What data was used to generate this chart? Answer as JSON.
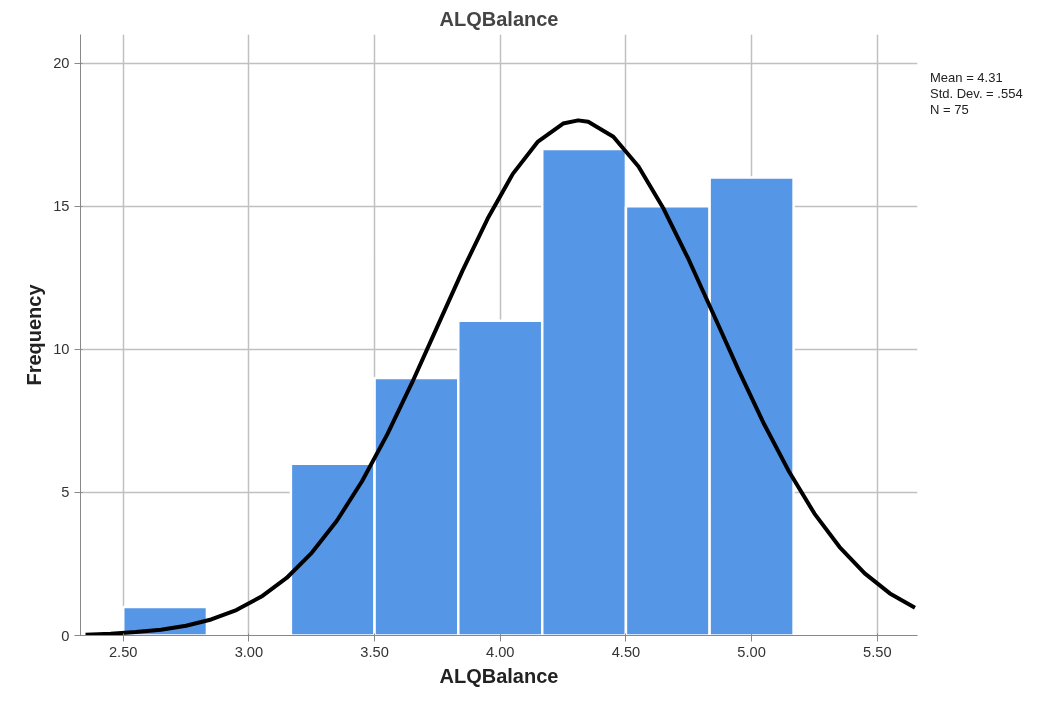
{
  "chart_data": {
    "type": "histogram",
    "title": "ALQBalance",
    "xlabel": "ALQBalance",
    "ylabel": "Frequency",
    "bins": [
      2.5,
      2.833,
      3.167,
      3.5,
      3.833,
      4.167,
      4.5,
      4.833,
      5.167
    ],
    "values": [
      1,
      0,
      6,
      9,
      11,
      17,
      15,
      16
    ],
    "color": "#5596e6",
    "series": [
      {
        "type": "line",
        "color": "#000000",
        "x": [
          2.35,
          2.45,
          2.55,
          2.65,
          2.75,
          2.85,
          2.95,
          3.05,
          3.15,
          3.25,
          3.35,
          3.45,
          3.55,
          3.65,
          3.75,
          3.85,
          3.95,
          4.05,
          4.15,
          4.25,
          4.31,
          4.35,
          4.45,
          4.55,
          4.65,
          4.75,
          4.85,
          4.95,
          5.05,
          5.15,
          5.25,
          5.35,
          5.45,
          5.55,
          5.65
        ],
        "values": [
          0.03,
          0.06,
          0.12,
          0.2,
          0.34,
          0.56,
          0.89,
          1.36,
          2.01,
          2.89,
          4.01,
          5.39,
          7.02,
          8.85,
          10.8,
          12.75,
          14.57,
          16.13,
          17.26,
          17.89,
          18.0,
          17.95,
          17.43,
          16.39,
          14.91,
          13.13,
          11.19,
          9.24,
          7.38,
          5.71,
          4.26,
          3.09,
          2.17,
          1.47,
          0.97
        ]
      }
    ],
    "xlim": [
      2.33,
      5.66
    ],
    "ylim": [
      0,
      21
    ],
    "xticks": [
      {
        "value": 2.5,
        "label": "2.50"
      },
      {
        "value": 3.0,
        "label": "3.00"
      },
      {
        "value": 3.5,
        "label": "3.50"
      },
      {
        "value": 4.0,
        "label": "4.00"
      },
      {
        "value": 4.5,
        "label": "4.50"
      },
      {
        "value": 5.0,
        "label": "5.00"
      },
      {
        "value": 5.5,
        "label": "5.50"
      }
    ],
    "yticks": [
      0,
      5,
      10,
      15,
      20
    ],
    "grid": true,
    "annotations": [
      "Mean = 4.31",
      "Std. Dev. = .554",
      "N = 75"
    ]
  }
}
